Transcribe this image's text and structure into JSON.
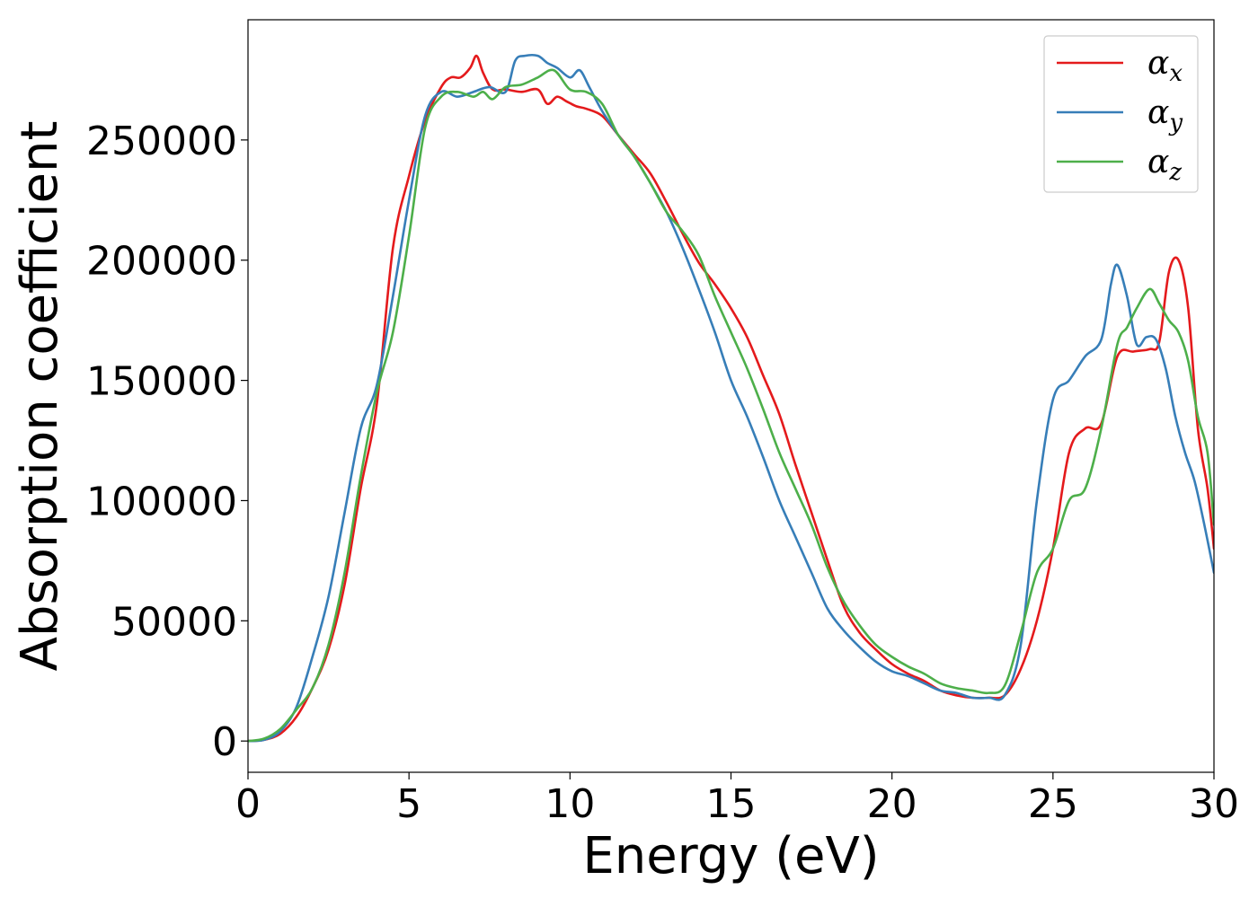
{
  "chart_data": {
    "type": "line",
    "xlabel": "Energy (eV)",
    "ylabel": "Absorption coefficient",
    "xlim": [
      0,
      30
    ],
    "ylim": [
      -13000,
      300000
    ],
    "xticks": [
      0,
      5,
      10,
      15,
      20,
      25,
      30
    ],
    "xtick_labels": [
      "0",
      "5",
      "10",
      "15",
      "20",
      "25",
      "30"
    ],
    "yticks": [
      0,
      50000,
      100000,
      150000,
      200000,
      250000
    ],
    "ytick_labels": [
      "0",
      "50000",
      "100000",
      "150000",
      "200000",
      "250000"
    ],
    "grid": false,
    "legend_position": "top-right",
    "series": [
      {
        "name": "α",
        "subscript": "x",
        "color": "#e41a1c",
        "x": [
          0,
          0.5,
          1,
          1.5,
          2,
          2.5,
          3,
          3.5,
          4,
          4.5,
          5,
          5.5,
          6,
          6.3,
          6.6,
          6.9,
          7.1,
          7.3,
          7.6,
          8,
          8.5,
          9,
          9.3,
          9.6,
          9.9,
          10.2,
          10.5,
          11,
          11.5,
          12,
          12.5,
          13,
          13.5,
          14,
          14.5,
          15,
          15.5,
          16,
          16.5,
          17,
          17.5,
          18,
          18.5,
          19,
          19.5,
          20,
          20.5,
          21,
          21.5,
          22,
          22.5,
          23,
          23.5,
          24,
          24.5,
          25,
          25.5,
          26,
          26.5,
          27,
          27.5,
          28,
          28.3,
          28.6,
          28.9,
          29.2,
          29.5,
          29.8,
          30
        ],
        "y": [
          0,
          500,
          3000,
          10000,
          22000,
          38000,
          65000,
          105000,
          140000,
          205000,
          235000,
          258000,
          272000,
          276000,
          276000,
          280000,
          285000,
          278000,
          271000,
          271000,
          270000,
          271000,
          265000,
          268000,
          266000,
          264000,
          263000,
          260000,
          252000,
          244000,
          236000,
          224000,
          211000,
          199000,
          190000,
          180000,
          168000,
          152000,
          136000,
          115000,
          95000,
          75000,
          56000,
          45000,
          38000,
          32000,
          28000,
          25000,
          21000,
          19000,
          18000,
          18000,
          19000,
          30000,
          50000,
          80000,
          120000,
          130000,
          132000,
          160000,
          162000,
          163000,
          166000,
          195000,
          200000,
          180000,
          130000,
          105000,
          80000
        ]
      },
      {
        "name": "α",
        "subscript": "y",
        "color": "#377eb8",
        "x": [
          0,
          0.5,
          1,
          1.5,
          2,
          2.5,
          3,
          3.5,
          4,
          4.5,
          5,
          5.5,
          6,
          6.5,
          7,
          7.5,
          8,
          8.3,
          8.6,
          9,
          9.3,
          9.6,
          10,
          10.3,
          10.6,
          11,
          11.5,
          12,
          12.5,
          13,
          13.5,
          14,
          14.5,
          15,
          15.5,
          16,
          16.5,
          17,
          17.5,
          18,
          18.5,
          19,
          19.5,
          20,
          20.5,
          21,
          21.5,
          22,
          22.5,
          23,
          23.5,
          24,
          24.5,
          25,
          25.5,
          26,
          26.5,
          26.8,
          27,
          27.3,
          27.6,
          27.9,
          28.2,
          28.5,
          28.8,
          29.1,
          29.4,
          29.7,
          30
        ],
        "y": [
          0,
          500,
          4000,
          14000,
          35000,
          60000,
          95000,
          130000,
          148000,
          185000,
          225000,
          260000,
          270000,
          268000,
          270000,
          272000,
          270000,
          283000,
          285000,
          285000,
          282000,
          280000,
          276000,
          279000,
          272000,
          262000,
          252000,
          243000,
          232000,
          220000,
          205000,
          188000,
          170000,
          150000,
          135000,
          118000,
          100000,
          85000,
          70000,
          55000,
          46000,
          39000,
          33000,
          29000,
          27000,
          24000,
          21000,
          20000,
          18000,
          18000,
          19000,
          40000,
          100000,
          142000,
          150000,
          160000,
          167000,
          190000,
          198000,
          185000,
          165000,
          168000,
          167000,
          155000,
          135000,
          120000,
          108000,
          90000,
          70000
        ]
      },
      {
        "name": "α",
        "subscript": "z",
        "color": "#4daf4a",
        "x": [
          0,
          0.5,
          1,
          1.5,
          2,
          2.5,
          3,
          3.5,
          4,
          4.5,
          5,
          5.5,
          6,
          6.5,
          7,
          7.3,
          7.6,
          8,
          8.5,
          9,
          9.5,
          10,
          10.5,
          11,
          11.5,
          12,
          12.5,
          13,
          13.5,
          14,
          14.5,
          15,
          15.5,
          16,
          16.5,
          17,
          17.5,
          18,
          18.5,
          19,
          19.5,
          20,
          20.5,
          21,
          21.5,
          22,
          22.5,
          23,
          23.5,
          24,
          24.5,
          25,
          25.5,
          26,
          26.5,
          27,
          27.3,
          27.6,
          28,
          28.3,
          28.6,
          28.9,
          29.2,
          29.5,
          29.8,
          30
        ],
        "y": [
          0,
          1000,
          5000,
          13000,
          22000,
          40000,
          70000,
          110000,
          145000,
          170000,
          210000,
          255000,
          268000,
          270000,
          268000,
          270000,
          267000,
          272000,
          273000,
          276000,
          279000,
          271000,
          270000,
          265000,
          252000,
          243000,
          232000,
          220000,
          212000,
          202000,
          185000,
          170000,
          155000,
          138000,
          120000,
          105000,
          90000,
          72000,
          58000,
          48000,
          40000,
          35000,
          31000,
          28000,
          24000,
          22000,
          21000,
          20000,
          23000,
          45000,
          70000,
          80000,
          100000,
          105000,
          130000,
          165000,
          172000,
          180000,
          188000,
          182000,
          175000,
          170000,
          158000,
          135000,
          120000,
          90000
        ]
      }
    ]
  }
}
